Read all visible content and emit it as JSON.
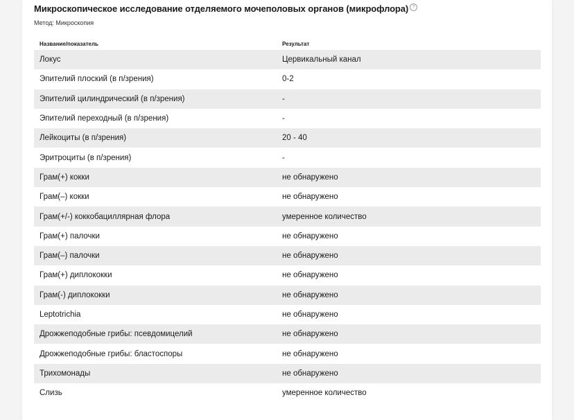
{
  "section": {
    "title": "Микроскопическое исследование отделяемого мочеполовых органов (микрофлора)",
    "help_icon": "?",
    "method": "Метод: Микроскопия"
  },
  "table": {
    "headers": [
      "Название/показатель",
      "Результат"
    ],
    "rows": [
      [
        "Локус",
        "Цервикальный канал"
      ],
      [
        "Эпителий плоский (в п/зрения)",
        "0-2"
      ],
      [
        "Эпителий цилиндрический (в п/зрения)",
        "-"
      ],
      [
        "Эпителий переходный (в п/зрения)",
        "-"
      ],
      [
        "Лейкоциты (в п/зрения)",
        "20 - 40"
      ],
      [
        "Эритроциты (в п/зрения)",
        "-"
      ],
      [
        "Грам(+) кокки",
        "не обнаружено"
      ],
      [
        "Грам(–) кокки",
        "не обнаружено"
      ],
      [
        "Грам(+/-) коккобациллярная флора",
        "умеренное количество"
      ],
      [
        "Грам(+) палочки",
        "не обнаружено"
      ],
      [
        "Грам(–) палочки",
        "не обнаружено"
      ],
      [
        "Грам(+) диплококки",
        "не обнаружено"
      ],
      [
        "Грам(-) диплококки",
        "не обнаружено"
      ],
      [
        "Leptotrichia",
        "не обнаружено"
      ],
      [
        "Дрожжеподобные грибы: псевдомицелий",
        "не обнаружено"
      ],
      [
        "Дрожжеподобные грибы: бластоспоры",
        "не обнаружено"
      ],
      [
        "Трихомонады",
        "не обнаружено"
      ],
      [
        "Слизь",
        "умеренное количество"
      ]
    ]
  }
}
